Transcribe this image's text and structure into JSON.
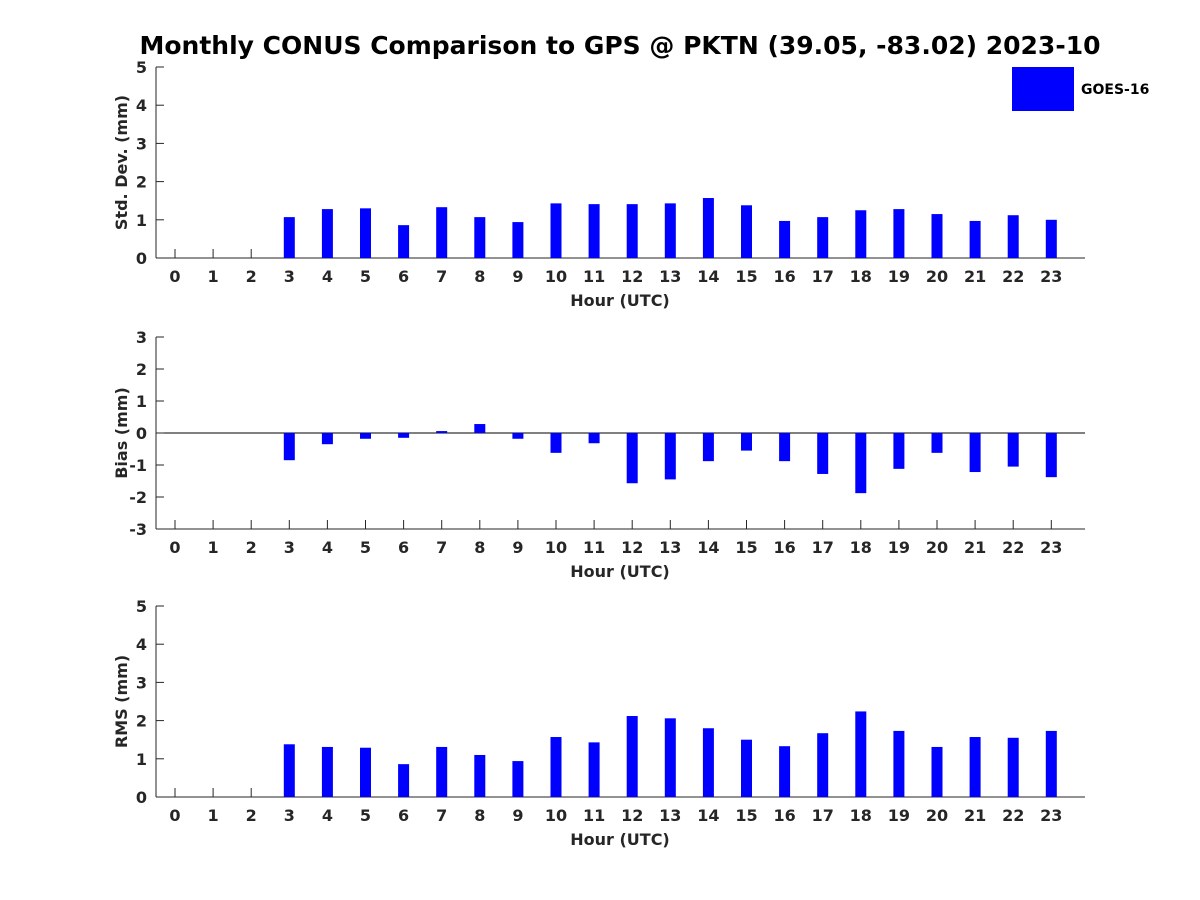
{
  "title": "Monthly CONUS Comparison to GPS @ PKTN (39.05, -83.02) 2023-10",
  "legend": {
    "label": "GOES-16",
    "color": "#0000ff",
    "placement": "top-right"
  },
  "chart_data": [
    {
      "type": "bar",
      "title": "Monthly CONUS Comparison to GPS @ PKTN (39.05, -83.02) 2023-10",
      "xlabel": "Hour (UTC)",
      "ylabel": "Std. Dev. (mm)",
      "ylim": [
        0,
        5
      ],
      "yticks": [
        0,
        1,
        2,
        3,
        4,
        5
      ],
      "grid": false,
      "categories": [
        "0",
        "1",
        "2",
        "3",
        "4",
        "5",
        "6",
        "7",
        "8",
        "9",
        "10",
        "11",
        "12",
        "13",
        "14",
        "15",
        "16",
        "17",
        "18",
        "19",
        "20",
        "21",
        "22",
        "23"
      ],
      "series": [
        {
          "name": "GOES-16",
          "color": "#0000ff",
          "values": [
            null,
            null,
            null,
            1.07,
            1.28,
            1.3,
            0.86,
            1.33,
            1.07,
            0.94,
            1.43,
            1.41,
            1.41,
            1.43,
            1.57,
            1.38,
            0.97,
            1.07,
            1.25,
            1.28,
            1.15,
            0.97,
            1.12,
            1.0
          ]
        }
      ]
    },
    {
      "type": "bar",
      "xlabel": "Hour (UTC)",
      "ylabel": "Bias (mm)",
      "ylim": [
        -3,
        3
      ],
      "yticks": [
        -3,
        -2,
        -1,
        0,
        1,
        2,
        3
      ],
      "grid": false,
      "categories": [
        "0",
        "1",
        "2",
        "3",
        "4",
        "5",
        "6",
        "7",
        "8",
        "9",
        "10",
        "11",
        "12",
        "13",
        "14",
        "15",
        "16",
        "17",
        "18",
        "19",
        "20",
        "21",
        "22",
        "23"
      ],
      "series": [
        {
          "name": "GOES-16",
          "color": "#0000ff",
          "values": [
            null,
            null,
            null,
            -0.85,
            -0.35,
            -0.18,
            -0.15,
            0.06,
            0.28,
            -0.18,
            -0.62,
            -0.32,
            -1.57,
            -1.45,
            -0.88,
            -0.55,
            -0.88,
            -1.28,
            -1.88,
            -1.12,
            -0.62,
            -1.22,
            -1.05,
            -1.38
          ]
        }
      ]
    },
    {
      "type": "bar",
      "xlabel": "Hour (UTC)",
      "ylabel": "RMS (mm)",
      "ylim": [
        0,
        5
      ],
      "yticks": [
        0,
        1,
        2,
        3,
        4,
        5
      ],
      "grid": false,
      "categories": [
        "0",
        "1",
        "2",
        "3",
        "4",
        "5",
        "6",
        "7",
        "8",
        "9",
        "10",
        "11",
        "12",
        "13",
        "14",
        "15",
        "16",
        "17",
        "18",
        "19",
        "20",
        "21",
        "22",
        "23"
      ],
      "series": [
        {
          "name": "GOES-16",
          "color": "#0000ff",
          "values": [
            null,
            null,
            null,
            1.38,
            1.31,
            1.29,
            0.86,
            1.31,
            1.1,
            0.94,
            1.57,
            1.43,
            2.12,
            2.06,
            1.8,
            1.5,
            1.33,
            1.67,
            2.24,
            1.73,
            1.31,
            1.57,
            1.55,
            1.73
          ]
        }
      ]
    }
  ]
}
